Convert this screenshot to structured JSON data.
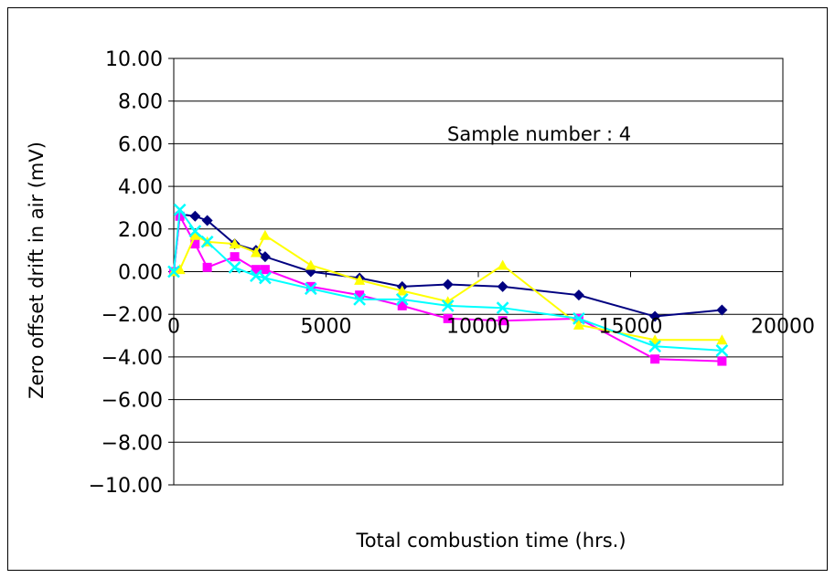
{
  "chart_data": {
    "type": "line",
    "title": "",
    "annotation": "Sample number : 4",
    "xlabel": "Total combustion time (hrs.)",
    "ylabel": "Zero offset drift in air (mV)",
    "xlim": [
      0,
      20000
    ],
    "ylim": [
      -10,
      10
    ],
    "xticks": [
      0,
      5000,
      10000,
      15000,
      20000
    ],
    "xtick_labels": [
      "0",
      "5000",
      "10000",
      "15000",
      "20000"
    ],
    "yticks": [
      10,
      8,
      6,
      4,
      2,
      0,
      -2,
      -4,
      -6,
      -8,
      -10
    ],
    "ytick_labels": [
      "10.00",
      "8.00",
      "6.00",
      "4.00",
      "2.00",
      "0.00",
      "−2.00",
      "−4.00",
      "−6.00",
      "−8.00",
      "−10.00"
    ],
    "grid": "horizontal",
    "legend": "none",
    "series": [
      {
        "color": "#000080",
        "marker": "diamond",
        "x": [
          0,
          200,
          700,
          1100,
          2000,
          2700,
          3000,
          4500,
          6100,
          7500,
          9000,
          10800,
          13300,
          15800,
          18000
        ],
        "y": [
          0.0,
          2.7,
          2.6,
          2.4,
          1.3,
          1.0,
          0.7,
          0.0,
          -0.3,
          -0.7,
          -0.6,
          -0.7,
          -1.1,
          -2.1,
          -1.8
        ]
      },
      {
        "color": "#FF00FF",
        "marker": "square",
        "x": [
          0,
          200,
          700,
          1100,
          2000,
          2700,
          3000,
          4500,
          6100,
          7500,
          9000,
          10800,
          13300,
          15800,
          18000
        ],
        "y": [
          0.0,
          2.6,
          1.3,
          0.2,
          0.7,
          0.1,
          0.1,
          -0.7,
          -1.1,
          -1.6,
          -2.2,
          -2.3,
          -2.2,
          -4.1,
          -4.2
        ]
      },
      {
        "color": "#FFFF00",
        "marker": "triangle",
        "x": [
          0,
          200,
          700,
          1100,
          2000,
          2700,
          3000,
          4500,
          6100,
          7500,
          9000,
          10800,
          13300,
          15800,
          18000
        ],
        "y": [
          0.0,
          0.1,
          1.7,
          1.4,
          1.3,
          0.9,
          1.7,
          0.3,
          -0.4,
          -0.9,
          -1.4,
          0.3,
          -2.5,
          -3.2,
          -3.2
        ]
      },
      {
        "color": "#00FFFF",
        "marker": "x",
        "x": [
          0,
          200,
          700,
          1100,
          2000,
          2700,
          3000,
          4500,
          6100,
          7500,
          9000,
          10800,
          13300,
          15800,
          18000
        ],
        "y": [
          0.0,
          2.9,
          1.9,
          1.4,
          0.2,
          -0.2,
          -0.3,
          -0.8,
          -1.3,
          -1.3,
          -1.6,
          -1.7,
          -2.2,
          -3.5,
          -3.7
        ]
      }
    ]
  }
}
